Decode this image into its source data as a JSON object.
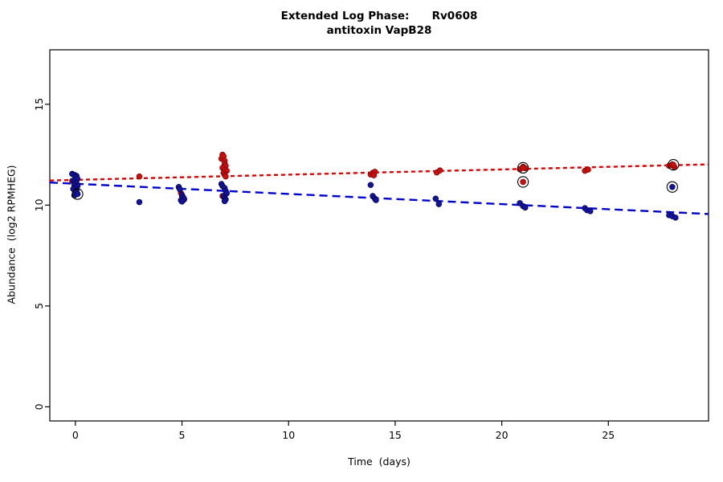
{
  "chart_data": {
    "type": "scatter",
    "title": "Extended Log Phase:      Rv0608",
    "subtitle": "antitoxin VapB28",
    "xlabel": "Time  (days)",
    "ylabel": "Abundance  (log2 RPMHEG)",
    "xlim": [
      -1.2,
      29.7
    ],
    "ylim": [
      -0.7,
      17.7
    ],
    "xticks": [
      0,
      5,
      10,
      15,
      20,
      25
    ],
    "yticks": [
      0,
      5,
      10,
      15
    ],
    "grid": false,
    "legend": "none",
    "series": [
      {
        "name": "red",
        "color": "#cc0f0f",
        "edge": "#7a0000",
        "trend": {
          "x": [
            -1.2,
            29.7
          ],
          "y": [
            11.22,
            12.02
          ]
        },
        "trend_color": "#e00000",
        "trend_dash": "5,4",
        "points": [
          [
            -0.15,
            11.2
          ],
          [
            0,
            11.1
          ],
          [
            0.1,
            11.0
          ],
          [
            -0.05,
            10.9
          ],
          [
            0.05,
            10.75
          ],
          [
            0,
            10.62
          ],
          [
            3,
            11.42
          ],
          [
            4.85,
            10.88
          ],
          [
            4.95,
            10.6
          ],
          [
            5,
            10.45
          ],
          [
            5.05,
            10.35
          ],
          [
            5.1,
            10.28
          ],
          [
            5,
            10.22
          ],
          [
            6.9,
            12.5
          ],
          [
            6.85,
            12.3
          ],
          [
            6.95,
            12.42
          ],
          [
            7,
            12.2
          ],
          [
            7,
            12.05
          ],
          [
            7.05,
            11.95
          ],
          [
            6.9,
            11.85
          ],
          [
            7,
            11.75
          ],
          [
            7.1,
            11.7
          ],
          [
            6.95,
            11.6
          ],
          [
            7,
            11.5
          ],
          [
            7.05,
            11.42
          ],
          [
            6.9,
            10.45
          ],
          [
            7,
            10.38
          ],
          [
            13.85,
            11.52
          ],
          [
            13.95,
            11.6
          ],
          [
            14.05,
            11.65
          ],
          [
            14,
            11.48
          ],
          [
            16.95,
            11.62
          ],
          [
            17.1,
            11.72
          ],
          [
            20.85,
            11.78
          ],
          [
            21,
            11.9
          ],
          [
            21.1,
            11.83
          ],
          [
            23.9,
            11.7
          ],
          [
            24.05,
            11.76
          ],
          [
            27.85,
            11.95
          ],
          [
            28,
            12.02
          ],
          [
            28.1,
            11.88
          ]
        ]
      },
      {
        "name": "blue",
        "color": "#14149b",
        "edge": "#000050",
        "trend": {
          "x": [
            -1.2,
            29.7
          ],
          "y": [
            11.12,
            9.56
          ]
        },
        "trend_color": "#0000d0",
        "trend_dash": "10,6",
        "points": [
          [
            -0.15,
            11.55
          ],
          [
            -0.05,
            11.5
          ],
          [
            0.05,
            11.45
          ],
          [
            0,
            11.38
          ],
          [
            0.1,
            11.3
          ],
          [
            -0.1,
            11.22
          ],
          [
            0,
            11.15
          ],
          [
            0.05,
            11.08
          ],
          [
            -0.05,
            11.0
          ],
          [
            0.1,
            10.95
          ],
          [
            0,
            10.88
          ],
          [
            -0.1,
            10.8
          ],
          [
            0.05,
            10.72
          ],
          [
            0,
            10.62
          ],
          [
            0.1,
            10.55
          ],
          [
            -0.05,
            10.48
          ],
          [
            3,
            10.15
          ],
          [
            4.85,
            10.9
          ],
          [
            4.9,
            10.78
          ],
          [
            5,
            10.5
          ],
          [
            5.05,
            10.4
          ],
          [
            5.1,
            10.3
          ],
          [
            4.95,
            10.24
          ],
          [
            5,
            10.18
          ],
          [
            6.85,
            11.05
          ],
          [
            6.9,
            10.95
          ],
          [
            7,
            10.85
          ],
          [
            7.05,
            10.7
          ],
          [
            7.1,
            10.58
          ],
          [
            6.95,
            10.45
          ],
          [
            7,
            10.35
          ],
          [
            7.05,
            10.28
          ],
          [
            7,
            10.2
          ],
          [
            13.85,
            11.0
          ],
          [
            13.95,
            10.45
          ],
          [
            14.05,
            10.32
          ],
          [
            14.1,
            10.25
          ],
          [
            16.9,
            10.32
          ],
          [
            17.05,
            10.05
          ],
          [
            20.85,
            10.1
          ],
          [
            21,
            9.95
          ],
          [
            21.1,
            9.88
          ],
          [
            23.9,
            9.85
          ],
          [
            24,
            9.75
          ],
          [
            24.15,
            9.7
          ],
          [
            27.85,
            9.5
          ],
          [
            28,
            9.45
          ],
          [
            28.15,
            9.38
          ]
        ]
      }
    ],
    "flagged_points": [
      {
        "x": 0.1,
        "y": 10.55,
        "series": "blue"
      },
      {
        "x": 21,
        "y": 11.85,
        "series": "red"
      },
      {
        "x": 21,
        "y": 11.15,
        "series": "red"
      },
      {
        "x": 28.05,
        "y": 12.0,
        "series": "red"
      },
      {
        "x": 28,
        "y": 10.9,
        "series": "blue"
      }
    ]
  }
}
